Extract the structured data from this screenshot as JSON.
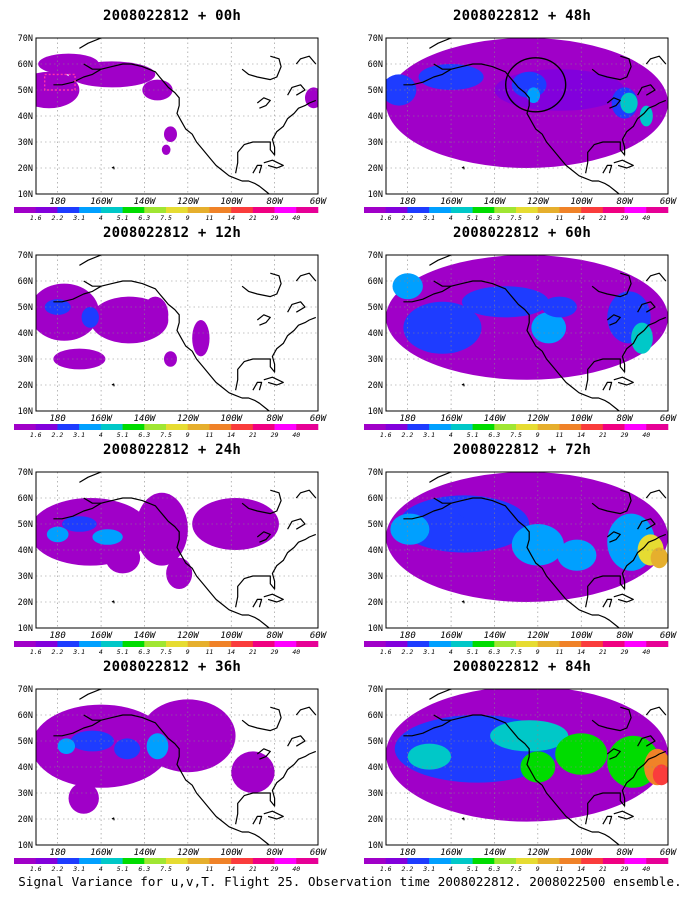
{
  "panels": [
    {
      "title": "2008022812 + 00h",
      "lead_hours": 0
    },
    {
      "title": "2008022812 + 48h",
      "lead_hours": 48
    },
    {
      "title": "2008022812 + 12h",
      "lead_hours": 12
    },
    {
      "title": "2008022812 + 60h",
      "lead_hours": 60
    },
    {
      "title": "2008022812 + 24h",
      "lead_hours": 24
    },
    {
      "title": "2008022812 + 72h",
      "lead_hours": 72
    },
    {
      "title": "2008022812 + 36h",
      "lead_hours": 36
    },
    {
      "title": "2008022812 + 84h",
      "lead_hours": 84
    }
  ],
  "lat_labels": [
    "70N",
    "60N",
    "50N",
    "40N",
    "30N",
    "20N",
    "10N"
  ],
  "lon_labels": [
    "180",
    "160W",
    "140W",
    "120W",
    "100W",
    "80W",
    "60W"
  ],
  "colorbar": {
    "labels": [
      "1.6",
      "2.2",
      "3.1",
      "4",
      "5.1",
      "6.3",
      "7.5",
      "9",
      "11",
      "14",
      "21",
      "29",
      "40"
    ],
    "colors": [
      "#a000c8",
      "#8200dc",
      "#1e3cff",
      "#00a0ff",
      "#00c8c8",
      "#00dc00",
      "#a0e632",
      "#e6dc32",
      "#e6af2d",
      "#f08228",
      "#fa3c3c",
      "#f00082",
      "#ff00ff",
      "#e60096"
    ]
  },
  "caption": "Signal Variance for u,v,T. Flight 25. Observation time 2008022812. 2008022500 ensemble."
}
